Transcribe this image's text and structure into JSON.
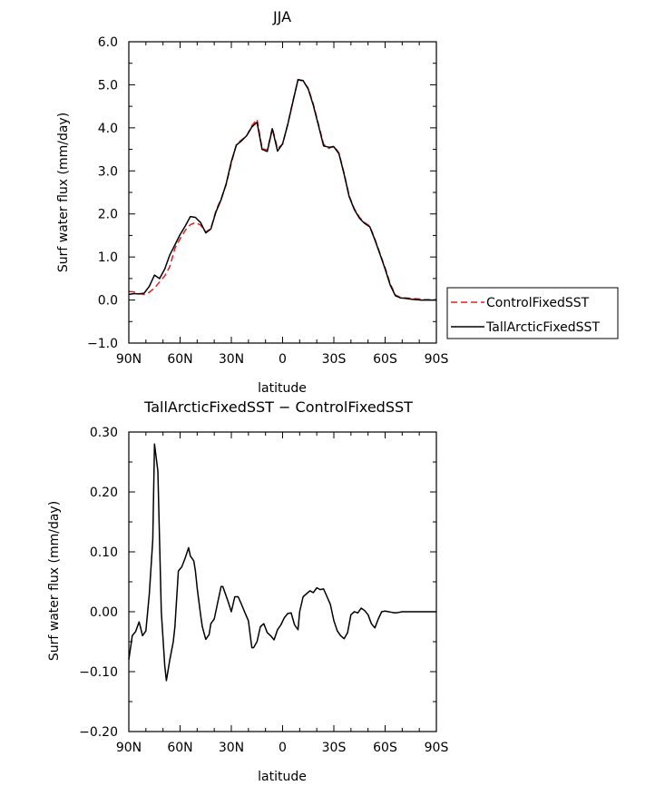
{
  "chart_data": [
    {
      "type": "line",
      "title": "JJA",
      "xlabel": "latitude",
      "ylabel": "Surf water flux (mm/day)",
      "xlim": [
        90,
        -90
      ],
      "ylim": [
        -1.0,
        6.0
      ],
      "xticks": [
        90,
        60,
        30,
        0,
        -30,
        -60,
        -90
      ],
      "xtick_labels": [
        "90N",
        "60N",
        "30N",
        "0",
        "30S",
        "60S",
        "90S"
      ],
      "yticks": [
        -1.0,
        0.0,
        1.0,
        2.0,
        3.0,
        4.0,
        5.0,
        6.0
      ],
      "ytick_labels": [
        "−1.0",
        "0.0",
        "1.0",
        "2.0",
        "3.0",
        "4.0",
        "5.0",
        "6.0"
      ],
      "legend_position": "right",
      "series": [
        {
          "name": "ControlFixedSST",
          "color": "#e0201e",
          "dash": "dashed",
          "x": [
            90,
            87,
            84,
            81,
            78,
            75,
            72,
            69,
            66,
            63,
            60,
            57,
            54,
            51,
            48,
            45,
            42,
            39,
            36,
            33,
            30,
            27,
            24,
            21,
            18,
            15,
            12,
            9,
            6,
            3,
            0,
            -3,
            -6,
            -9,
            -12,
            -15,
            -18,
            -21,
            -24,
            -27,
            -30,
            -33,
            -36,
            -39,
            -42,
            -45,
            -48,
            -51,
            -54,
            -57,
            -60,
            -63,
            -66,
            -69,
            -72,
            -75,
            -78,
            -81,
            -84,
            -87,
            -90
          ],
          "values": [
            0.2,
            0.19,
            0.15,
            0.13,
            0.18,
            0.28,
            0.42,
            0.56,
            0.78,
            1.2,
            1.42,
            1.62,
            1.75,
            1.8,
            1.74,
            1.58,
            1.66,
            2.08,
            2.35,
            2.68,
            3.18,
            3.62,
            3.72,
            3.82,
            4.05,
            4.2,
            3.52,
            3.48,
            4.0,
            3.52,
            3.62,
            4.08,
            4.62,
            5.12,
            5.08,
            4.92,
            4.55,
            4.08,
            3.62,
            3.52,
            3.58,
            3.42,
            2.95,
            2.42,
            2.12,
            1.92,
            1.8,
            1.72,
            1.42,
            1.08,
            0.75,
            0.38,
            0.12,
            0.06,
            0.05,
            0.04,
            0.03,
            0.02,
            0.01,
            0.01,
            0.01
          ]
        },
        {
          "name": "TallArcticFixedSST",
          "color": "#000000",
          "dash": "solid",
          "x": [
            90,
            87,
            84,
            81,
            78,
            75,
            72,
            69,
            66,
            63,
            60,
            57,
            54,
            51,
            48,
            45,
            42,
            39,
            36,
            33,
            30,
            27,
            24,
            21,
            18,
            15,
            12,
            9,
            6,
            3,
            0,
            -3,
            -6,
            -9,
            -12,
            -15,
            -18,
            -21,
            -24,
            -27,
            -30,
            -33,
            -36,
            -39,
            -42,
            -45,
            -48,
            -51,
            -54,
            -57,
            -60,
            -63,
            -66,
            -69,
            -72,
            -75,
            -78,
            -81,
            -84,
            -87,
            -90
          ],
          "values": [
            0.13,
            0.15,
            0.14,
            0.16,
            0.32,
            0.58,
            0.5,
            0.72,
            1.05,
            1.28,
            1.52,
            1.72,
            1.94,
            1.92,
            1.8,
            1.56,
            1.65,
            2.05,
            2.33,
            2.7,
            3.22,
            3.6,
            3.7,
            3.82,
            4.02,
            4.13,
            3.5,
            3.45,
            3.98,
            3.46,
            3.63,
            4.07,
            4.6,
            5.12,
            5.1,
            4.9,
            4.52,
            4.05,
            3.58,
            3.55,
            3.56,
            3.4,
            2.92,
            2.4,
            2.1,
            1.9,
            1.78,
            1.7,
            1.4,
            1.06,
            0.72,
            0.35,
            0.1,
            0.05,
            0.04,
            0.02,
            0.01,
            0.0,
            0.0,
            0.0,
            0.0
          ]
        }
      ]
    },
    {
      "type": "line",
      "title": "TallArcticFixedSST − ControlFixedSST",
      "xlabel": "latitude",
      "ylabel": "Surf water flux (mm/day)",
      "xlim": [
        90,
        -90
      ],
      "ylim": [
        -0.2,
        0.3
      ],
      "xticks": [
        90,
        60,
        30,
        0,
        -30,
        -60,
        -90
      ],
      "xtick_labels": [
        "90N",
        "60N",
        "30N",
        "0",
        "30S",
        "60S",
        "90S"
      ],
      "yticks": [
        -0.2,
        -0.1,
        0.0,
        0.1,
        0.2,
        0.3
      ],
      "ytick_labels": [
        "−0.20",
        "−0.10",
        "0.00",
        "0.10",
        "0.20",
        "0.30"
      ],
      "series": [
        {
          "color": "#000000",
          "dash": "solid",
          "x": [
            90,
            88,
            86,
            84,
            83,
            82,
            80,
            78,
            76,
            75,
            73,
            71,
            69,
            68,
            66,
            64,
            63,
            61,
            59,
            57,
            55,
            54,
            52,
            51,
            50,
            48,
            47,
            45,
            43,
            42,
            40,
            38,
            36,
            35,
            32,
            30,
            28,
            26,
            24,
            22,
            20,
            18,
            17,
            15,
            13,
            11,
            9,
            7,
            5,
            3,
            1,
            -1,
            -3,
            -5,
            -7,
            -9,
            -10,
            -12,
            -14,
            -16,
            -18,
            -20,
            -22,
            -24,
            -26,
            -28,
            -30,
            -32,
            -34,
            -36,
            -38,
            -40,
            -42,
            -44,
            -46,
            -48,
            -50,
            -52,
            -54,
            -56,
            -58,
            -60,
            -62,
            -64,
            -66,
            -68,
            -70,
            -72,
            -74,
            -76,
            -78,
            -80,
            -82,
            -84,
            -86,
            -88,
            -90
          ],
          "values": [
            -0.08,
            -0.04,
            -0.033,
            -0.017,
            -0.028,
            -0.04,
            -0.032,
            0.03,
            0.12,
            0.28,
            0.235,
            0.0,
            -0.09,
            -0.115,
            -0.08,
            -0.05,
            -0.025,
            0.068,
            0.075,
            0.09,
            0.107,
            0.093,
            0.085,
            0.068,
            0.04,
            -0.005,
            -0.025,
            -0.046,
            -0.038,
            -0.02,
            -0.012,
            0.015,
            0.042,
            0.042,
            0.018,
            0.0,
            0.025,
            0.025,
            0.012,
            -0.002,
            -0.015,
            -0.06,
            -0.06,
            -0.05,
            -0.025,
            -0.02,
            -0.035,
            -0.04,
            -0.047,
            -0.03,
            -0.022,
            -0.01,
            -0.003,
            -0.002,
            -0.022,
            -0.03,
            0.0,
            0.025,
            0.03,
            0.035,
            0.032,
            0.04,
            0.037,
            0.038,
            0.025,
            0.012,
            -0.015,
            -0.032,
            -0.04,
            -0.045,
            -0.035,
            -0.005,
            0.0,
            -0.002,
            0.006,
            0.002,
            -0.005,
            -0.02,
            -0.027,
            -0.012,
            0.0,
            0.001,
            0.0,
            -0.001,
            -0.002,
            -0.001,
            0.0,
            0.0,
            0.0,
            0.0,
            0.0,
            0.0,
            0.0,
            0.0,
            0.0,
            0.0,
            0.0
          ]
        }
      ]
    }
  ]
}
